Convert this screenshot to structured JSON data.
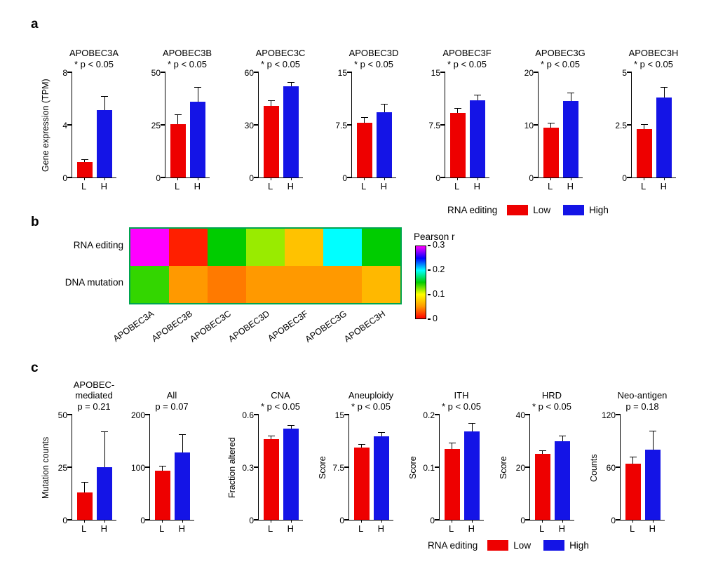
{
  "panels": {
    "a": {
      "label": "a"
    },
    "b": {
      "label": "b"
    },
    "c": {
      "label": "c"
    }
  },
  "legend": {
    "title": "RNA editing",
    "items": [
      {
        "label": "Low",
        "color": "#ee0000"
      },
      {
        "label": "High",
        "color": "#1414e6"
      }
    ]
  },
  "chart_data": [
    {
      "panel": "a",
      "type": "bar",
      "title": "APOBEC3A",
      "subtitle": "* p < 0.05",
      "ylabel": "Gene expression (TPM)",
      "categories": [
        "L",
        "H"
      ],
      "values": [
        1.2,
        5.1
      ],
      "errors": [
        0.2,
        1.1
      ],
      "ylim": [
        0,
        8
      ],
      "yticks": [
        0,
        4,
        8
      ]
    },
    {
      "panel": "a",
      "type": "bar",
      "title": "APOBEC3B",
      "subtitle": "* p < 0.05",
      "ylabel": "",
      "categories": [
        "L",
        "H"
      ],
      "values": [
        25.5,
        36
      ],
      "errors": [
        4.5,
        7
      ],
      "ylim": [
        0,
        50
      ],
      "yticks": [
        0,
        25,
        50
      ]
    },
    {
      "panel": "a",
      "type": "bar",
      "title": "APOBEC3C",
      "subtitle": "* p < 0.05",
      "ylabel": "",
      "categories": [
        "L",
        "H"
      ],
      "values": [
        41,
        52
      ],
      "errors": [
        3,
        2.5
      ],
      "ylim": [
        0,
        60
      ],
      "yticks": [
        0,
        30,
        60
      ]
    },
    {
      "panel": "a",
      "type": "bar",
      "title": "APOBEC3D",
      "subtitle": "* p < 0.05",
      "ylabel": "",
      "categories": [
        "L",
        "H"
      ],
      "values": [
        7.8,
        9.3
      ],
      "errors": [
        0.8,
        1.2
      ],
      "ylim": [
        0,
        15
      ],
      "yticks": [
        0,
        7.5,
        15
      ]
    },
    {
      "panel": "a",
      "type": "bar",
      "title": "APOBEC3F",
      "subtitle": "* p < 0.05",
      "ylabel": "",
      "categories": [
        "L",
        "H"
      ],
      "values": [
        9.2,
        11
      ],
      "errors": [
        0.7,
        0.8
      ],
      "ylim": [
        0,
        15
      ],
      "yticks": [
        0,
        7.5,
        15
      ]
    },
    {
      "panel": "a",
      "type": "bar",
      "title": "APOBEC3G",
      "subtitle": "* p < 0.05",
      "ylabel": "",
      "categories": [
        "L",
        "H"
      ],
      "values": [
        9.5,
        14.5
      ],
      "errors": [
        0.9,
        1.6
      ],
      "ylim": [
        0,
        20
      ],
      "yticks": [
        0,
        10,
        20
      ]
    },
    {
      "panel": "a",
      "type": "bar",
      "title": "APOBEC3H",
      "subtitle": "* p < 0.05",
      "ylabel": "",
      "categories": [
        "L",
        "H"
      ],
      "values": [
        2.3,
        3.8
      ],
      "errors": [
        0.25,
        0.5
      ],
      "ylim": [
        0,
        5
      ],
      "yticks": [
        0,
        2.5,
        5
      ]
    },
    {
      "panel": "b",
      "type": "heatmap",
      "rows": [
        "RNA editing",
        "DNA mutation"
      ],
      "columns": [
        "APOBEC3A",
        "APOBEC3B",
        "APOBEC3C",
        "APOBEC3D",
        "APOBEC3F",
        "APOBEC3G",
        "APOBEC3H"
      ],
      "values": [
        [
          0.3,
          0.01,
          0.15,
          0.12,
          0.07,
          0.2,
          0.15
        ],
        [
          0.14,
          0.05,
          0.04,
          0.05,
          0.05,
          0.05,
          0.065
        ]
      ],
      "border_color": "#00a550",
      "colorbar": {
        "title": "Pearson r",
        "min": 0,
        "max": 0.3,
        "ticks": [
          0,
          0.1,
          0.2,
          0.3
        ],
        "colors": [
          "#ff0000",
          "#ff9900",
          "#ffff00",
          "#00cc00",
          "#00ffff",
          "#0000ff",
          "#ff00ff"
        ]
      }
    },
    {
      "panel": "c",
      "type": "bar",
      "title": "APOBEC-mediated",
      "subtitle": "p = 0.21",
      "ylabel": "Mutation counts",
      "categories": [
        "L",
        "H"
      ],
      "values": [
        13,
        25
      ],
      "errors": [
        5,
        17
      ],
      "ylim": [
        0,
        50
      ],
      "yticks": [
        0,
        25,
        50
      ]
    },
    {
      "panel": "c",
      "type": "bar",
      "title": "All",
      "subtitle": "p = 0.07",
      "ylabel": "",
      "categories": [
        "L",
        "H"
      ],
      "values": [
        93,
        128
      ],
      "errors": [
        10,
        35
      ],
      "ylim": [
        0,
        200
      ],
      "yticks": [
        0,
        100,
        200
      ]
    },
    {
      "panel": "c",
      "type": "bar",
      "title": "CNA",
      "subtitle": "* p < 0.05",
      "ylabel": "Fraction altered",
      "categories": [
        "L",
        "H"
      ],
      "values": [
        0.46,
        0.52
      ],
      "errors": [
        0.02,
        0.02
      ],
      "ylim": [
        0,
        0.6
      ],
      "yticks": [
        0,
        0.3,
        0.6
      ]
    },
    {
      "panel": "c",
      "type": "bar",
      "title": "Aneuploidy",
      "subtitle": "* p < 0.05",
      "ylabel": "Score",
      "categories": [
        "L",
        "H"
      ],
      "values": [
        10.3,
        11.9
      ],
      "errors": [
        0.5,
        0.6
      ],
      "ylim": [
        0,
        15
      ],
      "yticks": [
        0,
        7.5,
        15
      ]
    },
    {
      "panel": "c",
      "type": "bar",
      "title": "ITH",
      "subtitle": "* p < 0.05",
      "ylabel": "Score",
      "categories": [
        "L",
        "H"
      ],
      "values": [
        0.135,
        0.168
      ],
      "errors": [
        0.012,
        0.016
      ],
      "ylim": [
        0,
        0.2
      ],
      "yticks": [
        0,
        0.1,
        0.2
      ]
    },
    {
      "panel": "c",
      "type": "bar",
      "title": "HRD",
      "subtitle": "* p < 0.05",
      "ylabel": "Score",
      "categories": [
        "L",
        "H"
      ],
      "values": [
        25,
        30
      ],
      "errors": [
        1.5,
        2
      ],
      "ylim": [
        0,
        40
      ],
      "yticks": [
        0,
        20,
        40
      ]
    },
    {
      "panel": "c",
      "type": "bar",
      "title": "Neo-antigen",
      "subtitle": "p = 0.18",
      "ylabel": "Counts",
      "categories": [
        "L",
        "H"
      ],
      "values": [
        64,
        80
      ],
      "errors": [
        8,
        22
      ],
      "ylim": [
        0,
        120
      ],
      "yticks": [
        0,
        60,
        120
      ]
    }
  ]
}
